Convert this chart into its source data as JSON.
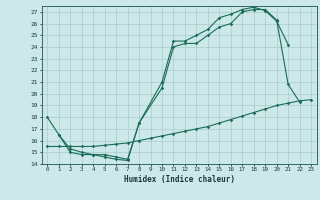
{
  "xlabel": "Humidex (Indice chaleur)",
  "bg_color": "#cce8e8",
  "grid_color": "#aacccc",
  "line_color": "#1a6b5a",
  "xlim": [
    -0.5,
    23.5
  ],
  "ylim": [
    14,
    27.5
  ],
  "yticks": [
    14,
    15,
    16,
    17,
    18,
    19,
    20,
    21,
    22,
    23,
    24,
    25,
    26,
    27
  ],
  "xticks": [
    0,
    1,
    2,
    3,
    4,
    5,
    6,
    7,
    8,
    9,
    10,
    11,
    12,
    13,
    14,
    15,
    16,
    17,
    18,
    19,
    20,
    21,
    22,
    23
  ],
  "line1_x": [
    0,
    1,
    2,
    3,
    4,
    5,
    6,
    7,
    8,
    10,
    11,
    12,
    13,
    14,
    15,
    16,
    17,
    18,
    19,
    20,
    21,
    22
  ],
  "line1_y": [
    18.0,
    16.5,
    15.0,
    14.8,
    14.8,
    14.6,
    14.4,
    14.3,
    17.5,
    20.5,
    24.0,
    24.3,
    24.3,
    25.0,
    25.7,
    26.0,
    27.0,
    27.2,
    27.2,
    26.3,
    20.8,
    19.3
  ],
  "line2_x": [
    1,
    2,
    3,
    4,
    5,
    6,
    7,
    8,
    10,
    11,
    12,
    13,
    14,
    15,
    16,
    17,
    18,
    19,
    20,
    21
  ],
  "line2_y": [
    16.5,
    15.3,
    15.0,
    14.8,
    14.8,
    14.6,
    14.4,
    17.5,
    21.0,
    24.5,
    24.5,
    25.0,
    25.5,
    26.5,
    26.8,
    27.2,
    27.4,
    27.1,
    26.2,
    24.2
  ],
  "line3_x": [
    0,
    1,
    2,
    3,
    4,
    5,
    6,
    7,
    8,
    9,
    10,
    11,
    12,
    13,
    14,
    15,
    16,
    17,
    18,
    19,
    20,
    21,
    22,
    23
  ],
  "line3_y": [
    15.5,
    15.5,
    15.5,
    15.5,
    15.5,
    15.6,
    15.7,
    15.8,
    16.0,
    16.2,
    16.4,
    16.6,
    16.8,
    17.0,
    17.2,
    17.5,
    17.8,
    18.1,
    18.4,
    18.7,
    19.0,
    19.2,
    19.4,
    19.5
  ]
}
